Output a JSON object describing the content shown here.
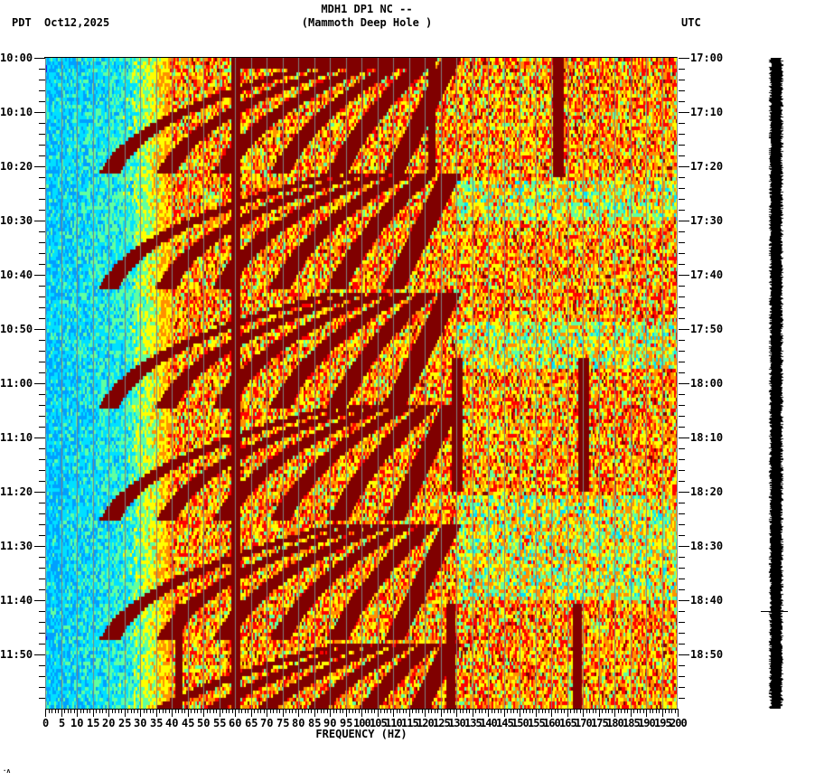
{
  "header": {
    "station_line": "MDH1 DP1 NC --",
    "site_line": "(Mammoth Deep Hole )",
    "left_timezone": "PDT",
    "date": "Oct12,2025",
    "right_timezone": "UTC"
  },
  "footer": {
    "corner_mark": "·ʌ"
  },
  "chart_data": {
    "type": "heatmap",
    "title": "MDH1 DP1 NC -- (Mammoth Deep Hole )",
    "subtitle": "Oct12,2025",
    "xlabel": "FREQUENCY (HZ)",
    "ylabel_left": "PDT",
    "ylabel_right": "UTC",
    "xlim": [
      0,
      200
    ],
    "x_ticks": [
      0,
      5,
      10,
      15,
      20,
      25,
      30,
      35,
      40,
      45,
      50,
      55,
      60,
      65,
      70,
      75,
      80,
      85,
      90,
      95,
      100,
      105,
      110,
      115,
      120,
      125,
      130,
      135,
      140,
      145,
      150,
      155,
      160,
      165,
      170,
      175,
      180,
      185,
      190,
      195,
      200
    ],
    "x_minor_tick_step": 1,
    "y_ticks_left": [
      "10:00",
      "10:10",
      "10:20",
      "10:30",
      "10:40",
      "10:50",
      "11:00",
      "11:10",
      "11:20",
      "11:30",
      "11:40",
      "11:50"
    ],
    "y_ticks_right": [
      "17:00",
      "17:10",
      "17:20",
      "17:30",
      "17:40",
      "17:50",
      "18:00",
      "18:10",
      "18:20",
      "18:30",
      "18:40",
      "18:50"
    ],
    "y_minor_tick_step_minutes": 2,
    "time_span_minutes": 120,
    "grid": {
      "vertical_every_hz": 5,
      "color": "#808080"
    },
    "colormap": [
      "#0000ff",
      "#00a0ff",
      "#00e0ff",
      "#60ffa0",
      "#ffff00",
      "#ff9000",
      "#ff0000",
      "#800000"
    ],
    "features": {
      "low_freq_background": "blue/cyan below ~30 Hz",
      "high_freq_background": "yellow/orange/red above ~40 Hz",
      "persistent_line_hz": 60,
      "sweep_cycle_minutes": 21,
      "sweep_start_hz": 20,
      "sweep_end_hz": 130,
      "sweep_repeats_at_minutes": [
        0,
        21,
        43,
        64,
        86,
        108
      ],
      "intermittent_lines_hz": [
        40,
        122,
        130,
        162,
        170
      ]
    }
  },
  "seismogram": {
    "marker_time_left": "11:42",
    "color": "#000000"
  }
}
